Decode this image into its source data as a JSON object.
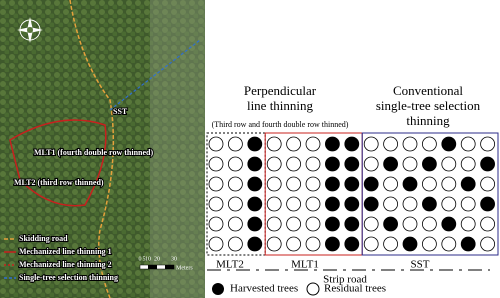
{
  "map": {
    "labels": {
      "sst": "SST",
      "mlt1": "MLT1 (fourth double row thinned)",
      "mlt2": "MLT2 (third row thinned)"
    },
    "legend": [
      "Skidding road",
      "Mechanized line thinning 1",
      "Mechanized line thinning 2",
      "Single-tree selection thinning"
    ],
    "scale": {
      "ticks": [
        "0",
        "5",
        "10",
        "20",
        "30"
      ],
      "unit": "Meters"
    }
  },
  "diagram": {
    "perpendicular": {
      "title_lines": [
        "Perpendicular",
        "line thinning"
      ],
      "note": "(Third row and fourth double row thinned)"
    },
    "conventional": {
      "title_lines": [
        "Conventional",
        "single-tree selection",
        "thinning"
      ]
    },
    "zones": [
      {
        "label": "MLT2",
        "rows": [
          [
            0,
            0,
            1
          ],
          [
            0,
            0,
            1
          ],
          [
            0,
            0,
            1
          ],
          [
            0,
            0,
            1
          ],
          [
            0,
            0,
            1
          ],
          [
            0,
            0,
            1
          ]
        ]
      },
      {
        "label": "MLT1",
        "rows": [
          [
            0,
            0,
            0,
            1,
            1
          ],
          [
            0,
            0,
            0,
            1,
            1
          ],
          [
            0,
            0,
            0,
            1,
            1
          ],
          [
            0,
            0,
            0,
            1,
            1
          ],
          [
            0,
            0,
            0,
            1,
            1
          ],
          [
            0,
            0,
            0,
            1,
            1
          ]
        ]
      },
      {
        "label": "SST",
        "rows": [
          [
            0,
            0,
            0,
            0,
            1,
            0,
            0
          ],
          [
            0,
            1,
            0,
            1,
            0,
            0,
            1
          ],
          [
            1,
            0,
            1,
            0,
            0,
            1,
            0
          ],
          [
            1,
            0,
            0,
            1,
            0,
            0,
            1
          ],
          [
            0,
            1,
            0,
            0,
            1,
            0,
            0
          ],
          [
            0,
            0,
            1,
            0,
            0,
            1,
            0
          ]
        ]
      }
    ],
    "road": "Strip road",
    "legend": {
      "harvested": "Harvested trees",
      "residual": "Residual trees"
    }
  }
}
